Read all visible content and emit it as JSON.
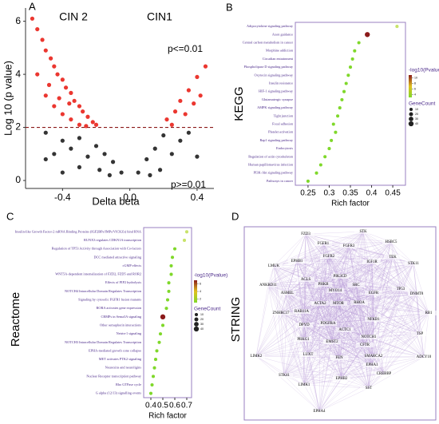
{
  "chart_data": [
    {
      "type": "scatter",
      "panel": "A",
      "x_label": "Delta beta",
      "y_label": "Log 10 (p value)",
      "annotations": [
        "CIN 2",
        "CIN1",
        "p<=0.01",
        "p>=0.01"
      ],
      "xlim": [
        -0.62,
        0.5
      ],
      "ylim": [
        -0.3,
        6.5
      ],
      "xticks": [
        {
          "value": -0.4,
          "label": "-0.4"
        },
        {
          "value": 0,
          "label": "0.0"
        },
        {
          "value": 0.4,
          "label": "0.4"
        }
      ],
      "yticks": [
        0,
        2,
        4,
        6
      ],
      "threshold": 2,
      "color_above": "#e8140c",
      "color_below": "#111111",
      "x": [
        -0.58,
        -0.55,
        -0.52,
        -0.5,
        -0.47,
        -0.45,
        -0.43,
        -0.4,
        -0.38,
        -0.35,
        -0.33,
        -0.3,
        -0.28,
        -0.25,
        -0.22,
        -0.2,
        -0.5,
        -0.45,
        -0.4,
        -0.35,
        -0.3,
        -0.55,
        -0.48,
        -0.42,
        -0.36,
        -0.26,
        -0.5,
        -0.4,
        -0.3,
        -0.2,
        -0.15,
        -0.1,
        -0.05,
        -0.35,
        -0.25,
        -0.45,
        -0.3,
        -0.18,
        -0.12,
        -0.4,
        -0.5,
        0.45,
        0.4,
        0.35,
        0.3,
        0.27,
        0.22,
        0.38,
        0.33,
        0.42,
        0.25,
        0.2,
        0.15,
        0.1,
        0.05,
        0.3,
        0.25,
        0.35,
        0.4,
        0.18,
        0.12
      ],
      "y": [
        6.1,
        5.7,
        5.3,
        4.9,
        4.6,
        4.3,
        4.0,
        3.8,
        3.5,
        3.3,
        3.0,
        2.8,
        2.6,
        2.4,
        2.2,
        2.1,
        3.2,
        2.8,
        2.5,
        2.3,
        2.1,
        4.0,
        3.6,
        3.1,
        2.9,
        2.05,
        1.8,
        1.5,
        1.6,
        1.3,
        1.0,
        0.7,
        0.3,
        1.2,
        0.9,
        1.0,
        0.5,
        0.4,
        0.2,
        0.3,
        0.8,
        4.3,
        3.9,
        3.4,
        3.0,
        2.6,
        2.3,
        2.9,
        2.5,
        3.2,
        2.1,
        1.7,
        1.2,
        0.8,
        0.3,
        1.5,
        1.0,
        1.8,
        0.9,
        0.4,
        0.2
      ]
    },
    {
      "type": "dot",
      "panel": "B",
      "title": "KEGG",
      "x_label": "Rich factor",
      "categories": [
        "Adipocytokine signaling pathway",
        "Axon guidance",
        "Central carbon metabolism in cancer",
        "Morphine addiction",
        "Circadian entrainment",
        "Phospholipase D signaling pathway",
        "Oxytocin signaling pathway",
        "Insulin resistance",
        "HIF-1 signaling pathway",
        "Glutamatergic synapse",
        "AMPK signaling pathway",
        "Tight junction",
        "Focal adhesion",
        "Platelet activation",
        "Rap1 signaling pathway",
        "Endocytosis",
        "Regulation of actin cytoskeleton",
        "Human papillomavirus infection",
        "PI3K-Akt signaling pathway",
        "Pathways in cancer"
      ],
      "values": [
        0.46,
        0.39,
        0.37,
        0.36,
        0.355,
        0.35,
        0.345,
        0.34,
        0.335,
        0.33,
        0.325,
        0.32,
        0.31,
        0.315,
        0.305,
        0.3,
        0.29,
        0.28,
        0.27,
        0.25
      ],
      "sizes": [
        10,
        40,
        10,
        10,
        10,
        10,
        10,
        10,
        10,
        10,
        10,
        10,
        10,
        10,
        10,
        10,
        10,
        10,
        10,
        10
      ],
      "colors": [
        "#c8e36a",
        "#8b1a1a",
        "#7fd82a",
        "#7fd82a",
        "#7fd82a",
        "#7fd82a",
        "#7fd82a",
        "#7fd82a",
        "#7fd82a",
        "#7fd82a",
        "#7fd82a",
        "#7fd82a",
        "#7fd82a",
        "#7fd82a",
        "#7fd82a",
        "#7fd82a",
        "#7fd82a",
        "#7fd82a",
        "#7fd82a",
        "#7fd82a"
      ],
      "xlim": [
        0.22,
        0.48
      ],
      "xticks": [
        0.25,
        0.3,
        0.35,
        0.4,
        0.45
      ],
      "colorbar_title": "-log10(Pvalue)",
      "colorbar_colors": [
        "#8b1a1a",
        "#e0c020",
        "#7fd82a"
      ],
      "colorbar_lim": [
        3,
        11
      ],
      "colorbar_ticks": [
        10,
        8,
        6,
        4
      ],
      "size_title": "GeneCount",
      "size_legend": [
        10,
        20,
        30,
        40
      ]
    },
    {
      "type": "dot",
      "panel": "C",
      "title": "Reactome",
      "x_label": "Rich factor",
      "categories": [
        "Insulin-like Growth Factor-2 mRNA Binding Proteins (IGF2BPs/IMPs/VICKZs) bind RNA",
        "RUNX3 regulates CDKN1A transcription",
        "Regulation of TP53 Activity through Association with Co-factors",
        "DCC mediated attractive signaling",
        "cGMP effects",
        "WNT5A-dependent internalization of FZD2, FZD5 and ROR2",
        "Effects of PIP2 hydrolysis",
        "NOTCH4 Intracellular Domain Regulates Transcription",
        "Signaling by cytosolic FGFR1 fusion mutants",
        "RORA activates gene expression",
        "CRMPs in Sema3A signaling",
        "Other semaphorin interactions",
        "Netrin-1 signaling",
        "NOTCH3 Intracellular Domain Regulates Transcription",
        "EPHA-mediated growth cone collapse",
        "MET activates PTK2 signaling",
        "Neurexins and neuroligins",
        "Nuclear Receptor transcription pathway",
        "Rho GTPase cycle",
        "G alpha (12/13) signalling events"
      ],
      "values": [
        0.7,
        0.68,
        0.6,
        0.58,
        0.57,
        0.57,
        0.55,
        0.55,
        0.54,
        0.53,
        0.5,
        0.5,
        0.48,
        0.47,
        0.45,
        0.44,
        0.43,
        0.42,
        0.41,
        0.4
      ],
      "sizes": [
        10,
        10,
        10,
        10,
        10,
        10,
        10,
        10,
        10,
        10,
        40,
        10,
        10,
        10,
        10,
        10,
        10,
        10,
        10,
        10
      ],
      "colors": [
        "#c8e36a",
        "#c8e36a",
        "#7fd82a",
        "#7fd82a",
        "#7fd82a",
        "#7fd82a",
        "#7fd82a",
        "#7fd82a",
        "#7fd82a",
        "#7fd82a",
        "#8b1a1a",
        "#7fd82a",
        "#7fd82a",
        "#7fd82a",
        "#7fd82a",
        "#7fd82a",
        "#7fd82a",
        "#7fd82a",
        "#7fd82a",
        "#7fd82a"
      ],
      "xlim": [
        0.34,
        0.74
      ],
      "xticks": [
        0.4,
        0.5,
        0.6,
        0.7
      ],
      "colorbar_title": "-log10(Pvalue)",
      "colorbar_colors": [
        "#8b1a1a",
        "#e0c020",
        "#7fd82a"
      ],
      "colorbar_lim": [
        1,
        7
      ],
      "colorbar_ticks": [
        6,
        4,
        2
      ],
      "size_title": "GeneCount",
      "size_legend": [
        10,
        20,
        30,
        40
      ]
    },
    {
      "type": "network",
      "panel": "D",
      "title": "STRING",
      "nodes": [
        "FZD3",
        "STK",
        "FGFR1",
        "FGFR3",
        "HSBC5",
        "LMUK",
        "EPHB1",
        "FGFR2",
        "IGF1R",
        "TEK",
        "STK11",
        "ANKRD11",
        "ACLS",
        "PHKB",
        "PIK3CD",
        "SRC",
        "TP53",
        "ASMEL",
        "MYO14",
        "MTOR",
        "EGFR",
        "DNMT8",
        "ZNHRC17",
        "RAB11A",
        "ACTA2",
        "RHOA",
        "RB1",
        "DPYD",
        "PDGFRA",
        "NFKB1",
        "PRKG1",
        "ACTC1",
        "NOTCH1",
        "TSP",
        "LIMK2",
        "LUXT",
        "EMST2",
        "CFTR",
        "ADCY10",
        "FEN",
        "SMARCA2",
        "EPHA1",
        "STK41",
        "CREBBP",
        "LIMK1",
        "EPHB2",
        "SST",
        "EPHA4"
      ]
    }
  ]
}
